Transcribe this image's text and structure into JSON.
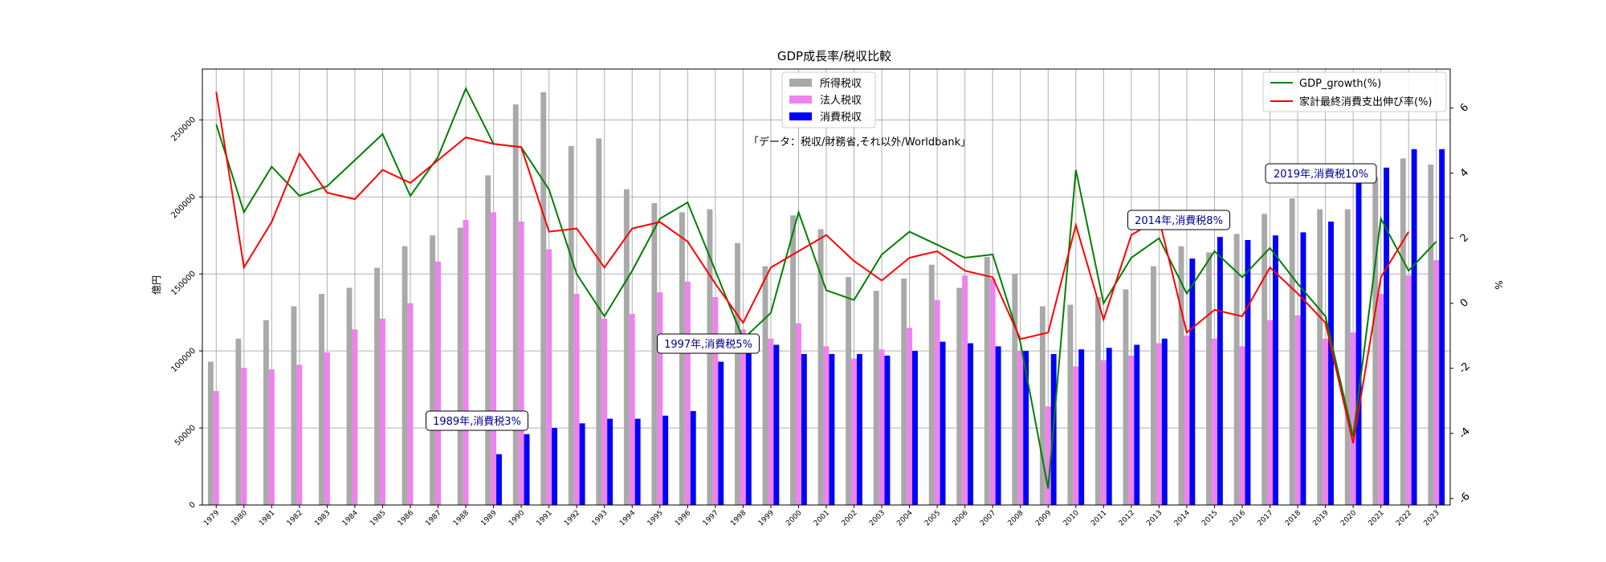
{
  "chart_data": {
    "type": "bar",
    "title": "GDP成長率/税収比較",
    "annotation_source": "「データ：税収/財務省,それ以外/Worldbank」",
    "ylabel_left": "億円",
    "ylabel_right": "%",
    "ylim_left": [
      0,
      283000
    ],
    "ylim_right": [
      -6.2,
      7.2
    ],
    "left_ticks": [
      0,
      50000,
      100000,
      150000,
      200000,
      250000
    ],
    "right_ticks": [
      -6,
      -4,
      -2,
      0,
      2,
      4,
      6
    ],
    "grid": true,
    "legend_bars_position": "top-center",
    "legend_lines_position": "top-right",
    "categories": [
      "1979",
      "1980",
      "1981",
      "1982",
      "1983",
      "1984",
      "1985",
      "1986",
      "1987",
      "1988",
      "1989",
      "1990",
      "1991",
      "1992",
      "1993",
      "1994",
      "1995",
      "1996",
      "1997",
      "1998",
      "1999",
      "2000",
      "2001",
      "2002",
      "2003",
      "2004",
      "2005",
      "2006",
      "2007",
      "2008",
      "2009",
      "2010",
      "2011",
      "2012",
      "2013",
      "2014",
      "2015",
      "2016",
      "2017",
      "2018",
      "2019",
      "2020",
      "2021",
      "2022",
      "2023"
    ],
    "bar_series": [
      {
        "name": "所得税収",
        "color": "#a9a9a9",
        "values": [
          93000,
          108000,
          120000,
          129000,
          137000,
          141000,
          154000,
          168000,
          175000,
          180000,
          214000,
          260000,
          268000,
          233000,
          238000,
          205000,
          196000,
          190000,
          192000,
          170000,
          155000,
          188000,
          179000,
          148000,
          139000,
          147000,
          156000,
          141000,
          161000,
          150000,
          129000,
          130000,
          135000,
          140000,
          155000,
          168000,
          164000,
          176000,
          189000,
          199000,
          192000,
          192000,
          213000,
          225000,
          221000
        ]
      },
      {
        "name": "法人税収",
        "color": "#ee82ee",
        "values": [
          74000,
          89000,
          88000,
          91000,
          99000,
          114000,
          121000,
          131000,
          158000,
          185000,
          190000,
          184000,
          166000,
          137000,
          121000,
          124000,
          138000,
          145000,
          135000,
          114000,
          108000,
          118000,
          103000,
          95000,
          101000,
          115000,
          133000,
          149000,
          147000,
          100000,
          64000,
          90000,
          94000,
          97000,
          105000,
          110000,
          108000,
          103000,
          120000,
          123000,
          108000,
          112000,
          137000,
          149000,
          159000
        ]
      },
      {
        "name": "消費税収",
        "color": "#0000ff",
        "values": [
          0,
          0,
          0,
          0,
          0,
          0,
          0,
          0,
          0,
          0,
          33000,
          46000,
          50000,
          53000,
          56000,
          56000,
          58000,
          61000,
          93000,
          101000,
          104000,
          98000,
          98000,
          98000,
          97000,
          100000,
          106000,
          105000,
          103000,
          100000,
          98000,
          101000,
          102000,
          104000,
          108000,
          160000,
          174000,
          172000,
          175000,
          177000,
          184000,
          210000,
          219000,
          231000,
          231000
        ]
      }
    ],
    "line_series": [
      {
        "name": "GDP_growth(%)",
        "color": "#008000",
        "values": [
          5.5,
          2.8,
          4.2,
          3.3,
          3.6,
          4.4,
          5.2,
          3.3,
          4.5,
          6.6,
          4.9,
          4.8,
          3.5,
          0.9,
          -0.4,
          1.0,
          2.6,
          3.1,
          1.0,
          -1.1,
          -0.3,
          2.8,
          0.4,
          0.1,
          1.5,
          2.2,
          1.8,
          1.4,
          1.5,
          -1.2,
          -5.7,
          4.1,
          0.0,
          1.4,
          2.0,
          0.3,
          1.6,
          0.8,
          1.7,
          0.6,
          -0.4,
          -4.1,
          2.6,
          1.0,
          1.9
        ]
      },
      {
        "name": "家計最終消費支出伸び率(%)",
        "color": "#ff0000",
        "values": [
          6.5,
          1.1,
          2.5,
          4.6,
          3.4,
          3.2,
          4.1,
          3.7,
          4.4,
          5.1,
          4.9,
          4.8,
          2.2,
          2.3,
          1.1,
          2.3,
          2.5,
          1.9,
          0.6,
          -0.6,
          1.1,
          1.6,
          2.1,
          1.3,
          0.7,
          1.4,
          1.6,
          1.0,
          0.8,
          -1.1,
          -0.9,
          2.4,
          -0.5,
          2.1,
          2.6,
          -0.9,
          -0.2,
          -0.4,
          1.1,
          0.3,
          -0.6,
          -4.3,
          0.8,
          2.2,
          null
        ]
      }
    ],
    "callouts": [
      {
        "text": "1989年,消費税3%"
      },
      {
        "text": "1997年,消費税5%"
      },
      {
        "text": "2014年,消費税8%"
      },
      {
        "text": "2019年,消費税10%"
      }
    ]
  }
}
